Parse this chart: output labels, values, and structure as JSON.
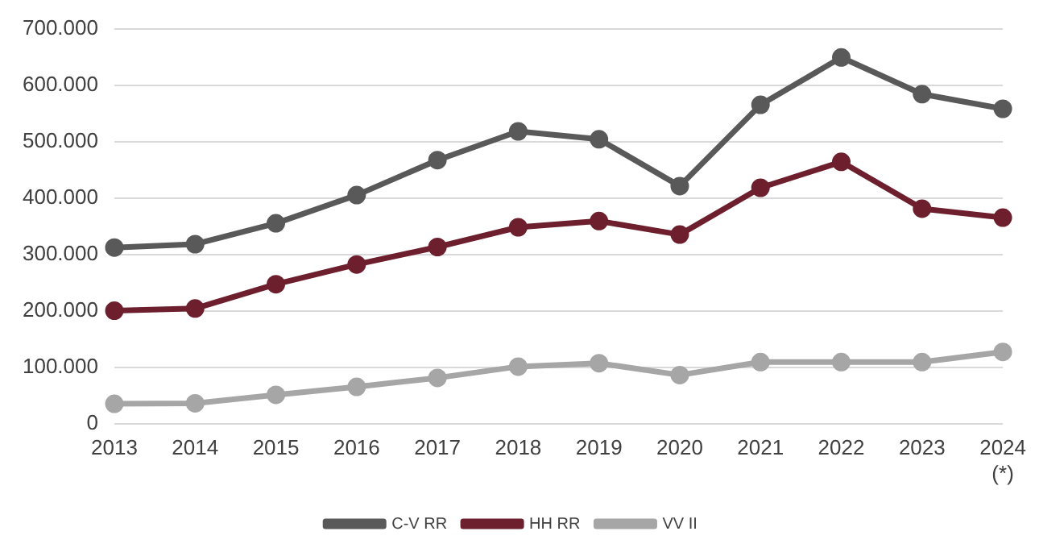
{
  "chart_data": {
    "type": "line",
    "categories": [
      "2013",
      "2014",
      "2015",
      "2016",
      "2017",
      "2018",
      "2019",
      "2020",
      "2021",
      "2022",
      "2023",
      "2024\n(*)"
    ],
    "series": [
      {
        "name": "C-V RR",
        "color": "#595959",
        "values": [
          312000,
          318000,
          355000,
          405000,
          467000,
          518000,
          504000,
          421000,
          565000,
          649000,
          584000,
          558000
        ]
      },
      {
        "name": "HH RR",
        "color": "#6e1f2e",
        "values": [
          200000,
          204000,
          247000,
          282000,
          313000,
          348000,
          359000,
          335000,
          418000,
          464000,
          381000,
          365000
        ]
      },
      {
        "name": "VV II",
        "color": "#a6a6a6",
        "values": [
          35000,
          36000,
          51000,
          65000,
          81000,
          101000,
          107000,
          86000,
          109000,
          109000,
          109000,
          127000
        ]
      }
    ],
    "ylim": [
      0,
      700000
    ],
    "yticks": [
      {
        "value": 0,
        "label": "0"
      },
      {
        "value": 100000,
        "label": "100.000"
      },
      {
        "value": 200000,
        "label": "200.000"
      },
      {
        "value": 300000,
        "label": "300.000"
      },
      {
        "value": 400000,
        "label": "400.000"
      },
      {
        "value": 500000,
        "label": "500.000"
      },
      {
        "value": 600000,
        "label": "600.000"
      },
      {
        "value": 700000,
        "label": "700.000"
      }
    ],
    "grid": "y",
    "legend": "bottom",
    "marker": "circle",
    "line_style": "solid"
  }
}
